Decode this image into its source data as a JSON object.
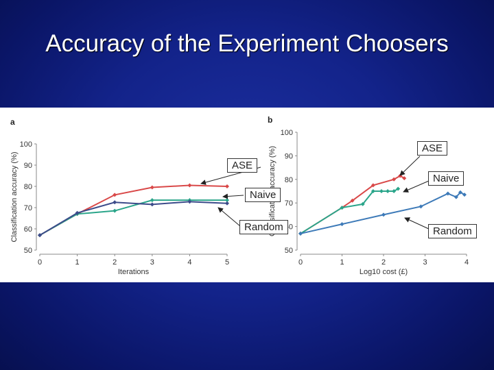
{
  "slide": {
    "title": "Accuracy of the Experiment Choosers"
  },
  "chart_data": [
    {
      "type": "line",
      "panel": "a",
      "xlabel": "Iterations",
      "ylabel": "Classification accuracy (%)",
      "xlim": [
        0,
        5
      ],
      "ylim": [
        50,
        100
      ],
      "xticks": [
        0,
        1,
        2,
        3,
        4,
        5
      ],
      "yticks": [
        50,
        60,
        70,
        80,
        90,
        100
      ],
      "grid": false,
      "series": [
        {
          "name": "ASE",
          "color": "#d94848",
          "x": [
            0,
            1,
            2,
            3,
            4,
            5
          ],
          "y": [
            57,
            67,
            76,
            79.5,
            80.5,
            80
          ]
        },
        {
          "name": "Naive",
          "color": "#2aa58a",
          "x": [
            0,
            1,
            2,
            3,
            4,
            5
          ],
          "y": [
            57,
            67,
            68.5,
            73.5,
            73.5,
            73.5
          ]
        },
        {
          "name": "Random",
          "color": "#3c4b8a",
          "x": [
            0,
            1,
            2,
            3,
            4,
            5
          ],
          "y": [
            57,
            67.5,
            72.5,
            71.5,
            72.8,
            72
          ]
        }
      ]
    },
    {
      "type": "line",
      "panel": "b",
      "xlabel": "Log10 cost (£)",
      "ylabel": "Classification accuracy (%)",
      "xlim": [
        0,
        4
      ],
      "ylim": [
        50,
        100
      ],
      "xticks": [
        0,
        1,
        2,
        3,
        4
      ],
      "yticks": [
        50,
        60,
        70,
        80,
        90,
        100
      ],
      "grid": false,
      "series": [
        {
          "name": "ASE",
          "color": "#d94848",
          "x": [
            0,
            1,
            1.25,
            1.75,
            2.25,
            2.4,
            2.5
          ],
          "y": [
            57,
            68,
            71,
            77.5,
            80,
            81.5,
            80.5
          ]
        },
        {
          "name": "Naive",
          "color": "#2aa58a",
          "x": [
            0,
            1,
            1.5,
            1.75,
            1.95,
            2.1,
            2.25,
            2.35
          ],
          "y": [
            57,
            68,
            69.5,
            75,
            75,
            75,
            75,
            76
          ]
        },
        {
          "name": "Random",
          "color": "#3d7ab8",
          "x": [
            0,
            1,
            2,
            2.9,
            3.55,
            3.75,
            3.85,
            3.95
          ],
          "y": [
            57,
            61,
            65,
            68.5,
            74,
            72.5,
            74.5,
            73.5
          ]
        }
      ]
    }
  ],
  "callouts": {
    "ase": "ASE",
    "naive": "Naive",
    "random": "Random"
  }
}
